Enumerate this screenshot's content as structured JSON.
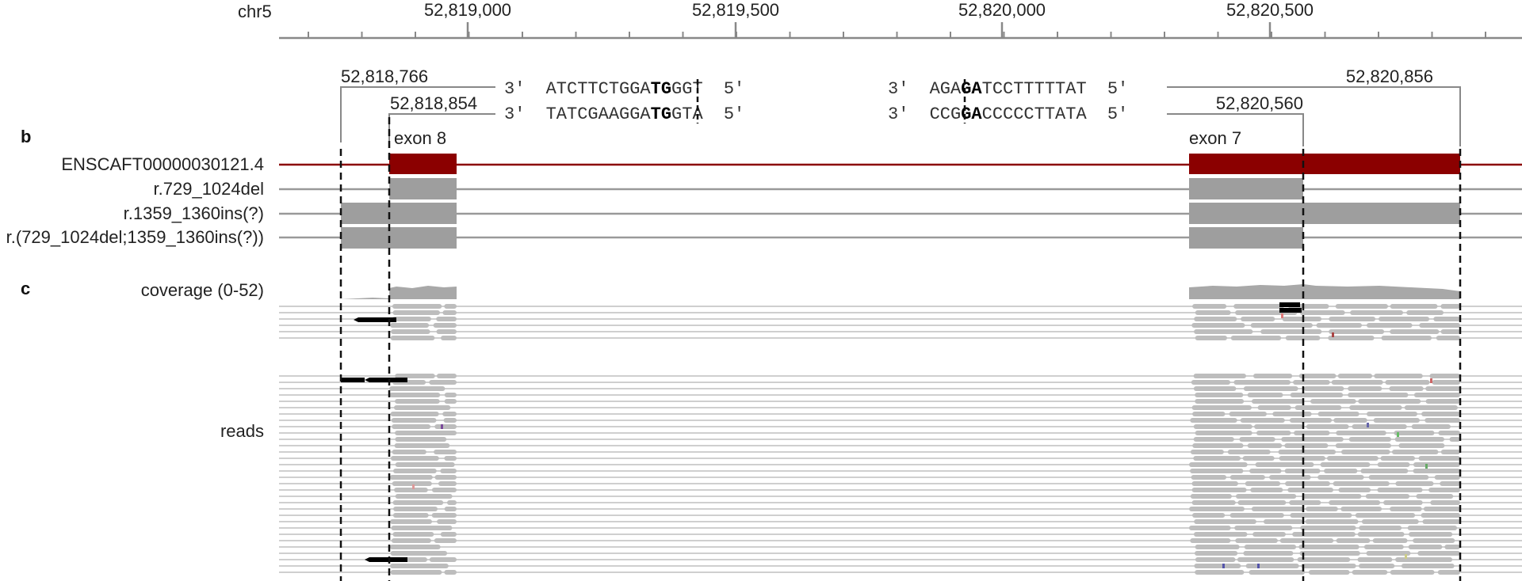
{
  "ruler": {
    "chrom": "chr5",
    "ticks": [
      {
        "pos": 52819000,
        "label": "52,819,000"
      },
      {
        "pos": 52819500,
        "label": "52,819,500"
      },
      {
        "pos": 52820000,
        "label": "52,820,000"
      },
      {
        "pos": 52820500,
        "label": "52,820,500"
      }
    ]
  },
  "breakpoints": [
    {
      "pos": 52818766,
      "label": "52,818,766"
    },
    {
      "pos": 52818854,
      "label": "52,818,854"
    },
    {
      "pos": 52820560,
      "label": "52,820,560"
    },
    {
      "pos": 52820856,
      "label": "52,820,856"
    }
  ],
  "sequences": {
    "left_top": {
      "prefix": "3'",
      "pre": "ATCTTCTGGA",
      "bold": "TG",
      "post": "GGT",
      "suffix": "5'"
    },
    "left_bot": {
      "prefix": "3'",
      "pre": "TATCGAAGGA",
      "bold": "TG",
      "post": "GTA",
      "suffix": "5'"
    },
    "right_top": {
      "prefix": "3'",
      "pre": "AGA",
      "bold": "GA",
      "post": "TCCTTTTTAT",
      "suffix": "5'"
    },
    "right_bot": {
      "prefix": "3'",
      "pre": "CCG",
      "bold": "GA",
      "post": "CCCCCTTATA",
      "suffix": "5'"
    }
  },
  "panels": {
    "b": "b",
    "c": "c"
  },
  "exons": {
    "exon8": "exon 8",
    "exon7": "exon 7"
  },
  "tracks": [
    {
      "label": "ENSCAFT00000030121.4",
      "color": "#8b0000"
    },
    {
      "label": "r.729_1024del",
      "color": "#999999"
    },
    {
      "label": "r.1359_1360ins(?)",
      "color": "#999999"
    },
    {
      "label": "r.(729_1024del;1359_1360ins(?))",
      "color": "#999999"
    }
  ],
  "coverage_label": "coverage (0-52)",
  "reads_label": "reads",
  "colors": {
    "transcript": "#8b0000",
    "exon_gray": "#9e9e9e",
    "read": "#bdbdbd",
    "split_read": "#000000"
  }
}
